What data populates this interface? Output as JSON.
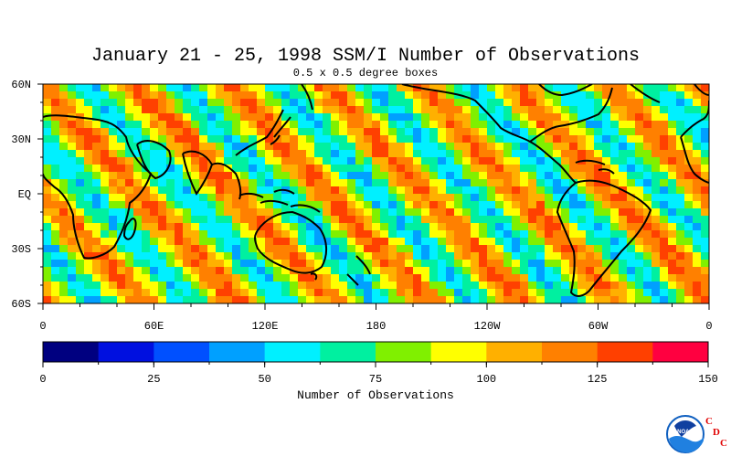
{
  "title": "January 21 - 25, 1998 SSM/I Number of Observations",
  "subtitle": "0.5 x 0.5 degree boxes",
  "map": {
    "lat_labels": [
      "60N",
      "30N",
      "EQ",
      "30S",
      "60S"
    ],
    "lon_labels": [
      "0",
      "60E",
      "120E",
      "180",
      "120W",
      "60W",
      "0"
    ],
    "lat_range": [
      -60,
      60
    ],
    "lon_range": [
      0,
      360
    ],
    "continent_color": "#000000"
  },
  "colorbar": {
    "label": "Number of Observations",
    "tick_labels": [
      "0",
      "25",
      "50",
      "75",
      "100",
      "125",
      "150"
    ],
    "range": [
      0,
      150
    ],
    "colors": [
      "#000080",
      "#0010e0",
      "#0050ff",
      "#00a0ff",
      "#00f0ff",
      "#00f0a0",
      "#80f000",
      "#ffff00",
      "#ffb000",
      "#ff8000",
      "#ff4000",
      "#ff0040"
    ]
  },
  "logo": {
    "name": "NOAA",
    "letters": [
      "C",
      "D",
      "C"
    ],
    "letter_color": "#e00000"
  }
}
